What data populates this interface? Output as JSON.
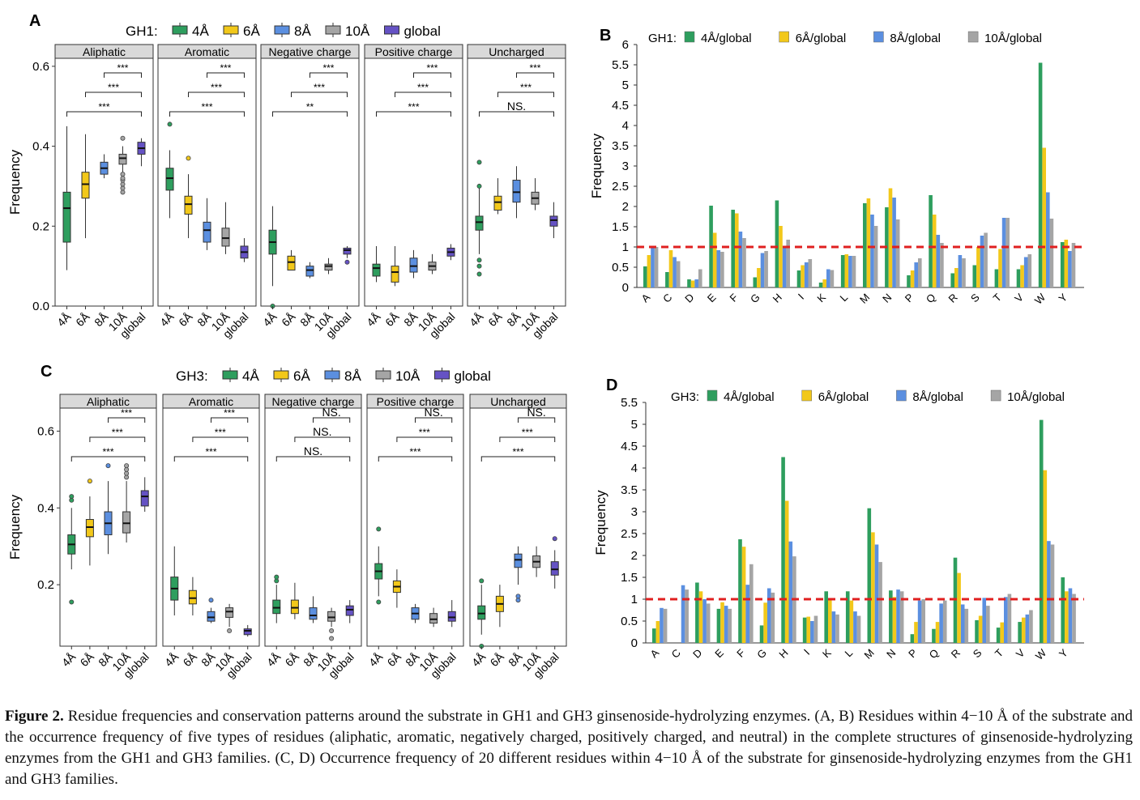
{
  "colors": {
    "4A": "#2e9e5e",
    "6A": "#f2c81a",
    "8A": "#5b8fe0",
    "10A": "#a5a5a5",
    "global": "#6552c4",
    "ref_line": "#e02020",
    "strip": "#d9d9d9"
  },
  "figure_caption": {
    "label": "Figure 2.",
    "text": "Residue frequencies and conservation patterns around the substrate in GH1 and GH3 ginsenoside-hydrolyzing enzymes. (A, B) Residues within 4−10 Å of the substrate and the occurrence frequency of five types of residues (aliphatic, aromatic, negatively charged, positively charged, and neutral) in the complete structures of ginsenoside-hydrolyzing enzymes from the GH1 and GH3 families. (C, D) Occurrence frequency of 20 different residues within 4−10 Å of the substrate for ginsenoside-hydrolyzing enzymes from the GH1 and GH3 families."
  },
  "chart_data": [
    {
      "id": "A",
      "panel_label": "A",
      "type": "box",
      "legend_title": "GH1:",
      "legend": [
        "4Å",
        "6Å",
        "8Å",
        "10Å",
        "global"
      ],
      "groups": [
        "4Å",
        "6Å",
        "8Å",
        "10Å",
        "global"
      ],
      "ylabel": "Frequency",
      "ylim": [
        0,
        0.62
      ],
      "yticks": [
        0.0,
        0.2,
        0.4,
        0.6
      ],
      "ytick_labels": [
        "0.0",
        "0.2",
        "0.4",
        "0.6"
      ],
      "facets": [
        {
          "title": "Aliphatic",
          "sig": [
            "***",
            "***",
            "***"
          ],
          "boxes": [
            [
              0.09,
              0.16,
              0.245,
              0.285,
              0.45
            ],
            [
              0.17,
              0.27,
              0.305,
              0.335,
              0.43
            ],
            [
              0.32,
              0.33,
              0.345,
              0.36,
              0.38
            ],
            [
              0.31,
              0.355,
              0.37,
              0.38,
              0.4
            ],
            [
              0.35,
              0.38,
              0.395,
              0.41,
              0.42
            ]
          ],
          "outliers": [
            [],
            [],
            [],
            [
              0.285,
              0.295,
              0.305,
              0.315,
              0.32,
              0.33,
              0.42
            ],
            []
          ]
        },
        {
          "title": "Aromatic",
          "sig": [
            "***",
            "***",
            "***"
          ],
          "boxes": [
            [
              0.22,
              0.29,
              0.32,
              0.345,
              0.39
            ],
            [
              0.17,
              0.23,
              0.255,
              0.275,
              0.33
            ],
            [
              0.14,
              0.16,
              0.19,
              0.21,
              0.27
            ],
            [
              0.13,
              0.15,
              0.17,
              0.195,
              0.26
            ],
            [
              0.11,
              0.12,
              0.135,
              0.15,
              0.17
            ]
          ],
          "outliers": [
            [
              0.455
            ],
            [
              0.37
            ],
            [],
            [],
            []
          ]
        },
        {
          "title": "Negative charge",
          "sig": [
            "***",
            "***",
            "**"
          ],
          "boxes": [
            [
              0.05,
              0.13,
              0.16,
              0.19,
              0.25
            ],
            [
              0.09,
              0.09,
              0.11,
              0.125,
              0.14
            ],
            [
              0.07,
              0.075,
              0.09,
              0.1,
              0.11
            ],
            [
              0.08,
              0.09,
              0.1,
              0.105,
              0.12
            ],
            [
              0.12,
              0.13,
              0.14,
              0.145,
              0.15
            ]
          ],
          "outliers": [
            [
              0.0
            ],
            [],
            [],
            [],
            [
              0.11
            ]
          ]
        },
        {
          "title": "Positive charge",
          "sig": [
            "***",
            "***",
            "***"
          ],
          "boxes": [
            [
              0.06,
              0.075,
              0.095,
              0.105,
              0.15
            ],
            [
              0.05,
              0.06,
              0.085,
              0.1,
              0.15
            ],
            [
              0.07,
              0.085,
              0.1,
              0.12,
              0.14
            ],
            [
              0.08,
              0.09,
              0.1,
              0.11,
              0.13
            ],
            [
              0.115,
              0.125,
              0.135,
              0.145,
              0.155
            ]
          ],
          "outliers": [
            [],
            [],
            [],
            [],
            []
          ]
        },
        {
          "title": "Uncharged",
          "sig": [
            "***",
            "***",
            "NS."
          ],
          "boxes": [
            [
              0.13,
              0.19,
              0.21,
              0.225,
              0.3
            ],
            [
              0.23,
              0.24,
              0.26,
              0.275,
              0.32
            ],
            [
              0.22,
              0.26,
              0.285,
              0.315,
              0.35
            ],
            [
              0.24,
              0.255,
              0.27,
              0.285,
              0.32
            ],
            [
              0.17,
              0.2,
              0.215,
              0.225,
              0.26
            ]
          ],
          "outliers": [
            [
              0.08,
              0.1,
              0.115,
              0.3,
              0.36
            ],
            [],
            [],
            [],
            []
          ]
        }
      ]
    },
    {
      "id": "B",
      "panel_label": "B",
      "type": "bar",
      "legend_title": "GH1:",
      "ylabel": "Frequency",
      "ylim": [
        0,
        6
      ],
      "yticks": [
        0,
        0.5,
        1,
        1.5,
        2,
        2.5,
        3,
        3.5,
        4,
        4.5,
        5,
        5.5,
        6
      ],
      "ytick_labels": [
        "0",
        "0.5",
        "1",
        "1.5",
        "2",
        "2.5",
        "3",
        "3.5",
        "4",
        "4.5",
        "5",
        "5.5",
        "6"
      ],
      "reference_line": 1,
      "categories": [
        "A",
        "C",
        "D",
        "E",
        "F",
        "G",
        "H",
        "I",
        "K",
        "L",
        "M",
        "N",
        "P",
        "Q",
        "R",
        "S",
        "T",
        "V",
        "W",
        "Y"
      ],
      "series": [
        {
          "name": "4Å/global",
          "values": [
            0.52,
            0.38,
            0.2,
            2.02,
            1.92,
            0.25,
            2.15,
            0.42,
            0.12,
            0.8,
            2.08,
            1.98,
            0.3,
            2.28,
            0.35,
            0.55,
            0.45,
            0.45,
            5.55,
            1.12
          ]
        },
        {
          "name": "6Å/global",
          "values": [
            0.8,
            0.92,
            0.17,
            1.35,
            1.83,
            0.48,
            1.52,
            0.55,
            0.2,
            0.82,
            2.2,
            2.45,
            0.42,
            1.8,
            0.48,
            1.0,
            0.95,
            0.55,
            3.45,
            1.18
          ]
        },
        {
          "name": "8Å/global",
          "values": [
            1.02,
            0.75,
            0.2,
            0.92,
            1.38,
            0.85,
            1.03,
            0.62,
            0.45,
            0.78,
            1.8,
            2.22,
            0.62,
            1.3,
            0.8,
            1.28,
            1.72,
            0.75,
            2.35,
            0.9
          ]
        },
        {
          "name": "10Å/global",
          "values": [
            1.0,
            0.65,
            0.45,
            0.88,
            1.22,
            0.9,
            1.18,
            0.7,
            0.43,
            0.78,
            1.52,
            1.68,
            0.72,
            1.1,
            0.72,
            1.35,
            1.72,
            0.82,
            1.7,
            1.1
          ]
        }
      ]
    },
    {
      "id": "C",
      "panel_label": "C",
      "type": "box",
      "legend_title": "GH3:",
      "legend": [
        "4Å",
        "6Å",
        "8Å",
        "10Å",
        "global"
      ],
      "groups": [
        "4Å",
        "6Å",
        "8Å",
        "10Å",
        "global"
      ],
      "ylabel": "Frequency",
      "ylim": [
        0.04,
        0.66
      ],
      "yticks": [
        0.2,
        0.4,
        0.6
      ],
      "ytick_labels": [
        "0.2",
        "0.4",
        "0.6"
      ],
      "facets": [
        {
          "title": "Aliphatic",
          "sig": [
            "***",
            "***",
            "***"
          ],
          "boxes": [
            [
              0.24,
              0.28,
              0.305,
              0.33,
              0.4
            ],
            [
              0.25,
              0.325,
              0.35,
              0.37,
              0.43
            ],
            [
              0.28,
              0.33,
              0.36,
              0.39,
              0.47
            ],
            [
              0.31,
              0.335,
              0.36,
              0.39,
              0.47
            ],
            [
              0.39,
              0.405,
              0.43,
              0.445,
              0.48
            ]
          ],
          "outliers": [
            [
              0.155,
              0.42,
              0.43
            ],
            [
              0.47
            ],
            [
              0.51
            ],
            [
              0.48,
              0.49,
              0.5,
              0.51
            ],
            []
          ]
        },
        {
          "title": "Aromatic",
          "sig": [
            "***",
            "***",
            "***"
          ],
          "boxes": [
            [
              0.12,
              0.16,
              0.19,
              0.22,
              0.3
            ],
            [
              0.12,
              0.15,
              0.165,
              0.185,
              0.22
            ],
            [
              0.1,
              0.105,
              0.115,
              0.13,
              0.14
            ],
            [
              0.09,
              0.115,
              0.13,
              0.14,
              0.15
            ],
            [
              0.065,
              0.07,
              0.08,
              0.085,
              0.095
            ]
          ],
          "outliers": [
            [],
            [],
            [
              0.16
            ],
            [
              0.08
            ],
            []
          ]
        },
        {
          "title": "Negative charge",
          "sig": [
            "NS.",
            "NS.",
            "NS."
          ],
          "boxes": [
            [
              0.1,
              0.125,
              0.14,
              0.16,
              0.2
            ],
            [
              0.11,
              0.125,
              0.14,
              0.16,
              0.205
            ],
            [
              0.1,
              0.11,
              0.12,
              0.14,
              0.17
            ],
            [
              0.09,
              0.105,
              0.115,
              0.13,
              0.14
            ],
            [
              0.1,
              0.12,
              0.135,
              0.145,
              0.16
            ]
          ],
          "outliers": [
            [
              0.21,
              0.22
            ],
            [],
            [],
            [
              0.06,
              0.08
            ],
            []
          ]
        },
        {
          "title": "Positive charge",
          "sig": [
            "NS.",
            "***",
            "***"
          ],
          "boxes": [
            [
              0.17,
              0.215,
              0.235,
              0.255,
              0.3
            ],
            [
              0.14,
              0.18,
              0.195,
              0.21,
              0.24
            ],
            [
              0.1,
              0.11,
              0.125,
              0.14,
              0.15
            ],
            [
              0.09,
              0.1,
              0.11,
              0.125,
              0.14
            ],
            [
              0.09,
              0.105,
              0.115,
              0.13,
              0.16
            ]
          ],
          "outliers": [
            [
              0.155,
              0.345
            ],
            [],
            [],
            [],
            []
          ]
        },
        {
          "title": "Uncharged",
          "sig": [
            "NS.",
            "***",
            "***"
          ],
          "boxes": [
            [
              0.07,
              0.11,
              0.125,
              0.145,
              0.2
            ],
            [
              0.09,
              0.13,
              0.15,
              0.17,
              0.2
            ],
            [
              0.2,
              0.245,
              0.265,
              0.28,
              0.3
            ],
            [
              0.22,
              0.245,
              0.26,
              0.275,
              0.3
            ],
            [
              0.19,
              0.225,
              0.24,
              0.26,
              0.29
            ]
          ],
          "outliers": [
            [
              0.04,
              0.21
            ],
            [],
            [
              0.16,
              0.17
            ],
            [],
            [
              0.32
            ]
          ]
        }
      ]
    },
    {
      "id": "D",
      "panel_label": "D",
      "type": "bar",
      "legend_title": "GH3:",
      "ylabel": "Frequency",
      "ylim": [
        0,
        5.5
      ],
      "yticks": [
        0,
        0.5,
        1,
        1.5,
        2,
        2.5,
        3,
        3.5,
        4,
        4.5,
        5,
        5.5
      ],
      "ytick_labels": [
        "0",
        "0.5",
        "1",
        "1.5",
        "2",
        "2.5",
        "3",
        "3.5",
        "4",
        "4.5",
        "5",
        "5.5"
      ],
      "reference_line": 1.0,
      "categories": [
        "A",
        "C",
        "D",
        "E",
        "F",
        "G",
        "H",
        "I",
        "K",
        "L",
        "M",
        "N",
        "P",
        "Q",
        "R",
        "S",
        "T",
        "V",
        "W",
        "Y"
      ],
      "series": [
        {
          "name": "4Å/global",
          "values": [
            0.33,
            0.0,
            1.38,
            0.78,
            2.37,
            0.4,
            4.25,
            0.58,
            1.18,
            1.18,
            3.08,
            1.2,
            0.2,
            0.32,
            1.95,
            0.52,
            0.35,
            0.48,
            5.1,
            1.5
          ]
        },
        {
          "name": "6Å/global",
          "values": [
            0.5,
            0.0,
            1.18,
            0.93,
            2.2,
            0.92,
            3.25,
            0.6,
            0.98,
            0.97,
            2.53,
            1.05,
            0.48,
            0.48,
            1.6,
            0.62,
            0.47,
            0.58,
            3.95,
            1.18
          ]
        },
        {
          "name": "8Å/global",
          "values": [
            0.8,
            1.32,
            1.0,
            0.85,
            1.33,
            1.25,
            2.32,
            0.5,
            0.72,
            0.72,
            2.25,
            1.22,
            0.97,
            0.9,
            0.88,
            1.03,
            1.05,
            0.65,
            2.33,
            1.25
          ]
        },
        {
          "name": "10Å/global",
          "values": [
            0.78,
            1.22,
            0.9,
            0.78,
            1.8,
            1.15,
            1.98,
            0.62,
            0.65,
            0.62,
            1.85,
            1.18,
            1.0,
            0.97,
            0.78,
            0.85,
            1.12,
            0.75,
            2.25,
            1.12
          ]
        }
      ]
    }
  ]
}
